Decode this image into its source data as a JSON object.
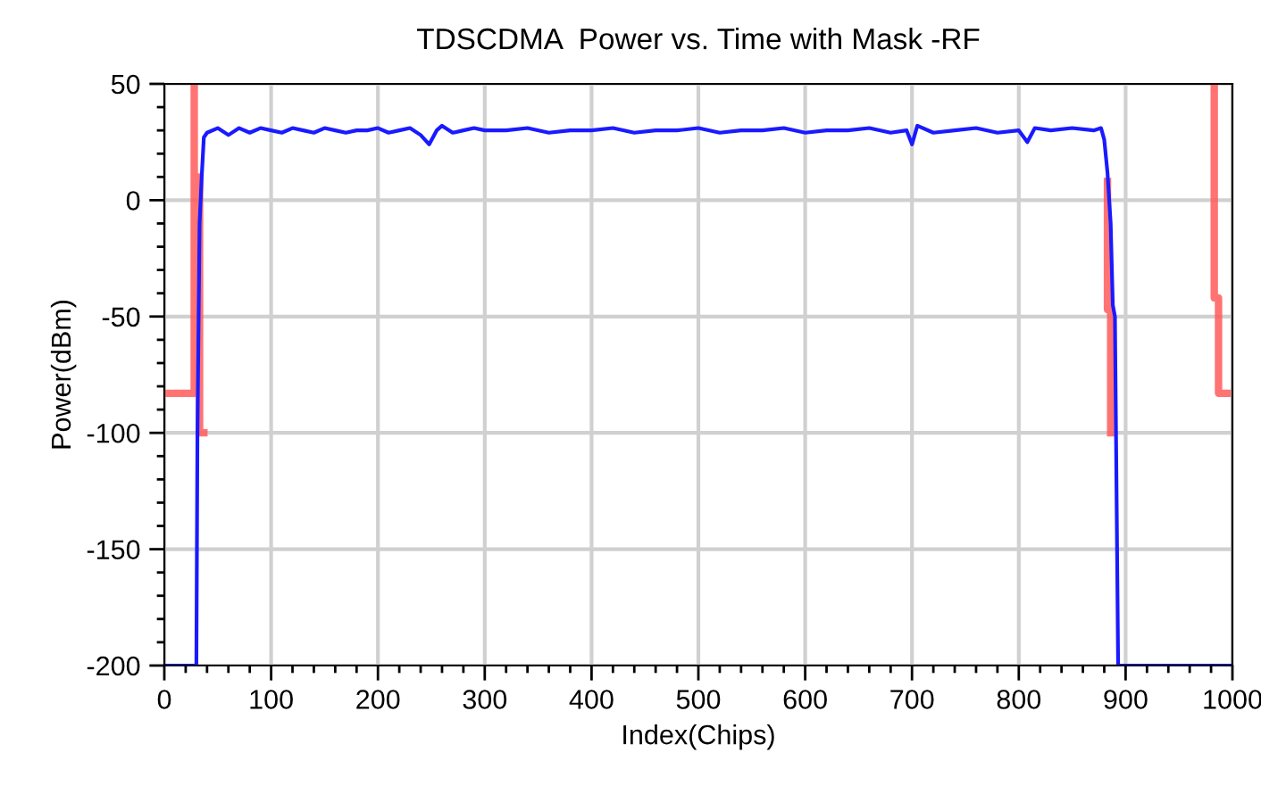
{
  "chart_data": {
    "type": "line",
    "title": "TDSCDMA  Power vs. Time with Mask -RF",
    "xlabel": "Index(Chips)",
    "ylabel": "Power(dBm)",
    "xlim": [
      0,
      1000
    ],
    "ylim": [
      -200,
      50
    ],
    "xticks": [
      0,
      100,
      200,
      300,
      400,
      500,
      600,
      700,
      800,
      900,
      1000
    ],
    "yticks": [
      -200,
      -150,
      -100,
      -50,
      0,
      50
    ],
    "grid": true,
    "legend": false,
    "marker": "none",
    "line_style": "solid",
    "series": [
      {
        "color": "#ff5a5a",
        "x": [
          0,
          28,
          28,
          28,
          33,
          33,
          37
        ],
        "values": [
          -83,
          -83,
          50,
          10,
          10,
          -100,
          -100
        ]
      },
      {
        "color": "#ff5a5a",
        "x": [
          883,
          883,
          886,
          886
        ],
        "values": [
          8,
          -47,
          -47,
          -100
        ]
      },
      {
        "color": "#ff5a5a",
        "x": [
          983,
          983,
          987,
          987,
          995
        ],
        "values": [
          50,
          -42,
          -42,
          -83,
          -83
        ]
      },
      {
        "color": "#1a1aff",
        "x": [
          0,
          30,
          31,
          33,
          35,
          37,
          40,
          50,
          60,
          70,
          80,
          90,
          100,
          110,
          120,
          130,
          140,
          150,
          160,
          170,
          180,
          190,
          200,
          210,
          220,
          230,
          240,
          248,
          255,
          260,
          270,
          280,
          290,
          300,
          320,
          340,
          360,
          380,
          400,
          420,
          440,
          460,
          480,
          500,
          520,
          540,
          560,
          580,
          600,
          620,
          640,
          660,
          680,
          695,
          700,
          705,
          720,
          740,
          760,
          780,
          800,
          808,
          815,
          830,
          850,
          870,
          877,
          880,
          883,
          886,
          888,
          890,
          893,
          1000
        ],
        "values": [
          -200,
          -200,
          -100,
          -10,
          10,
          27,
          29,
          31,
          28,
          31,
          29,
          31,
          30,
          29,
          31,
          30,
          29,
          31,
          30,
          29,
          30,
          30,
          31,
          29,
          30,
          31,
          28,
          24,
          30,
          32,
          29,
          30,
          31,
          30,
          30,
          31,
          29,
          30,
          30,
          31,
          29,
          30,
          30,
          31,
          29,
          30,
          30,
          31,
          29,
          30,
          30,
          31,
          29,
          30,
          24,
          32,
          29,
          30,
          31,
          29,
          30,
          25,
          31,
          30,
          31,
          30,
          31,
          26,
          12,
          -10,
          -45,
          -50,
          -200,
          -200
        ]
      }
    ]
  }
}
